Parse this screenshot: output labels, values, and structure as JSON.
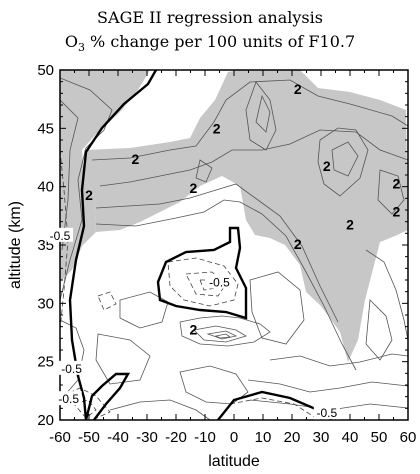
{
  "chart_data": {
    "type": "contour",
    "title": "SAGE II regression analysis",
    "subtitle_prefix": "O",
    "subtitle_sub": "3",
    "subtitle_rest": " % change per 100 units of F10.7",
    "xlabel": "latitude",
    "ylabel": "altitude (km)",
    "xlim": [
      -60,
      60
    ],
    "ylim": [
      20,
      50
    ],
    "xticks": [
      -60,
      -50,
      -40,
      -30,
      -20,
      -10,
      0,
      10,
      20,
      30,
      40,
      50,
      60
    ],
    "yticks": [
      20,
      25,
      30,
      35,
      40,
      45,
      50
    ],
    "shaded_region_label": "2",
    "contour_labels": [
      {
        "text": "2",
        "lat": 22,
        "alt": 48.2
      },
      {
        "text": "2",
        "lat": -6,
        "alt": 44.8
      },
      {
        "text": "2",
        "lat": -34,
        "alt": 42.2
      },
      {
        "text": "2",
        "lat": -14,
        "alt": 39.7
      },
      {
        "text": "2",
        "lat": -50,
        "alt": 39.1
      },
      {
        "text": "2",
        "lat": 32,
        "alt": 41.6
      },
      {
        "text": "2",
        "lat": 56,
        "alt": 40.1
      },
      {
        "text": "2",
        "lat": 56,
        "alt": 37.7
      },
      {
        "text": "2",
        "lat": 40,
        "alt": 36.6
      },
      {
        "text": "2",
        "lat": 22,
        "alt": 34.9
      },
      {
        "text": "2",
        "lat": -14,
        "alt": 27.6
      },
      {
        "text": "-0.5",
        "lat": -60,
        "alt": 35.7
      },
      {
        "text": "-0.5",
        "lat": -5,
        "alt": 31.7
      },
      {
        "text": "-0.5",
        "lat": -56,
        "alt": 24.3
      },
      {
        "text": "-0.5",
        "lat": -57,
        "alt": 21.7
      },
      {
        "text": "-0.5",
        "lat": 32,
        "alt": 20.5
      }
    ]
  }
}
